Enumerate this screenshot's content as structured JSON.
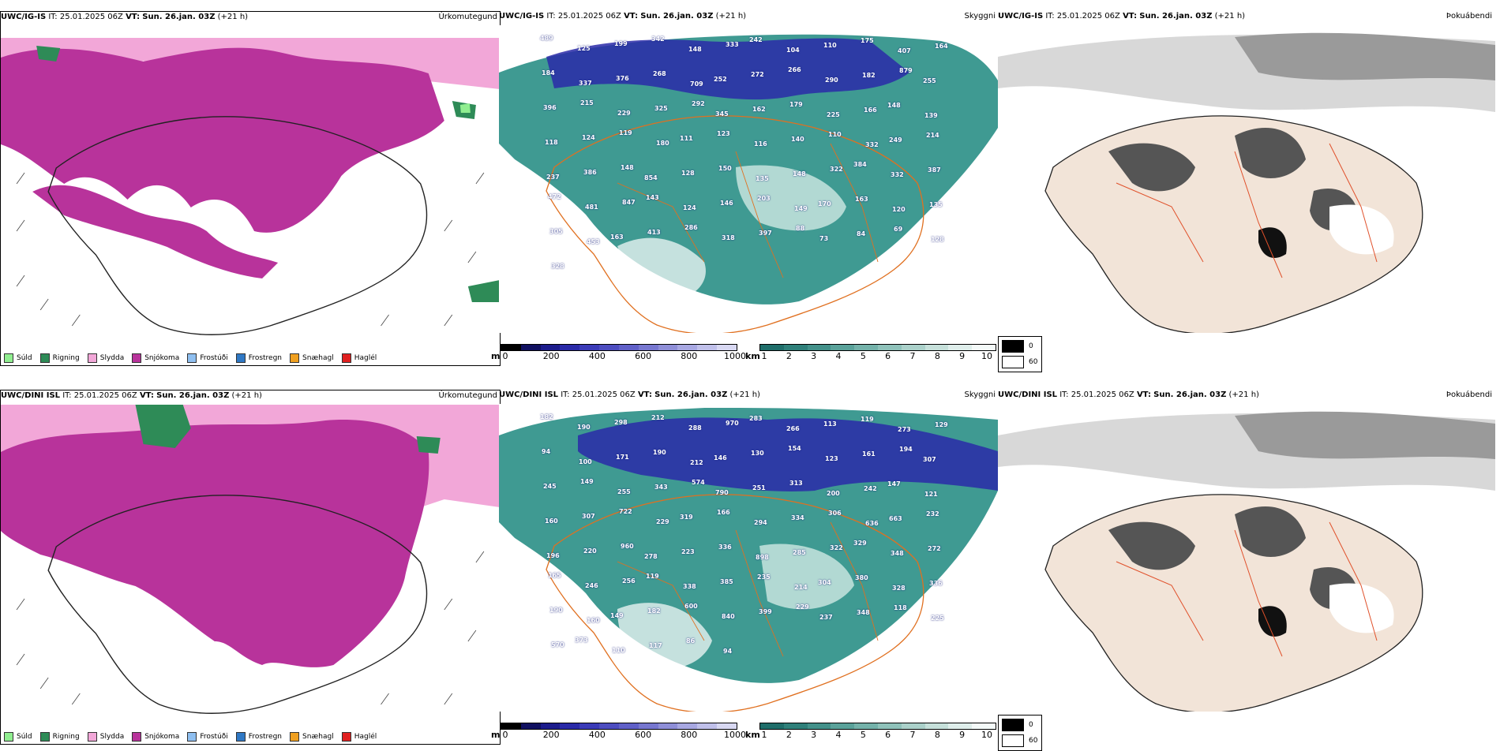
{
  "rows": [
    {
      "model": "UWC/IG-IS",
      "it_label": "IT:",
      "it_value": "25.01.2025 06Z",
      "vt_label": "VT:",
      "vt_value": "Sun. 26.jan. 03Z",
      "lead": "(+21 h)",
      "cloud_numbers": [
        "489",
        "125",
        "199",
        "342",
        "148",
        "333",
        "242",
        "104",
        "110",
        "175",
        "407",
        "164",
        "184",
        "337",
        "376",
        "268",
        "709",
        "252",
        "272",
        "266",
        "290",
        "182",
        "879",
        "255",
        "396",
        "215",
        "229",
        "325",
        "292",
        "345",
        "162",
        "179",
        "225",
        "166",
        "148",
        "139",
        "118",
        "124",
        "119",
        "180",
        "111",
        "123",
        "116",
        "140",
        "110",
        "332",
        "249",
        "214",
        "237",
        "386",
        "148",
        "854",
        "128",
        "150",
        "135",
        "148",
        "322",
        "384",
        "332",
        "387",
        "472",
        "481",
        "847",
        "143",
        "124",
        "146",
        "203",
        "149",
        "170",
        "163",
        "120",
        "135",
        "305",
        "453",
        "163",
        "413",
        "286",
        "318",
        "397",
        "88",
        "73",
        "84",
        "69",
        "128",
        "328"
      ]
    },
    {
      "model": "UWC/DINI ISL",
      "it_label": "IT:",
      "it_value": "25.01.2025 06Z",
      "vt_label": "VT:",
      "vt_value": "Sun. 26.jan. 03Z",
      "lead": "(+21 h)",
      "cloud_numbers": [
        "182",
        "190",
        "298",
        "212",
        "288",
        "970",
        "283",
        "266",
        "113",
        "119",
        "273",
        "129",
        "94",
        "100",
        "171",
        "190",
        "212",
        "146",
        "130",
        "154",
        "123",
        "161",
        "194",
        "307",
        "245",
        "149",
        "255",
        "343",
        "574",
        "790",
        "251",
        "313",
        "200",
        "242",
        "147",
        "121",
        "160",
        "307",
        "722",
        "229",
        "319",
        "166",
        "294",
        "334",
        "306",
        "636",
        "663",
        "232",
        "196",
        "220",
        "960",
        "278",
        "223",
        "336",
        "898",
        "285",
        "322",
        "329",
        "348",
        "272",
        "165",
        "246",
        "256",
        "119",
        "338",
        "385",
        "235",
        "214",
        "304",
        "380",
        "328",
        "336",
        "190",
        "160",
        "149",
        "182",
        "600",
        "840",
        "399",
        "229",
        "237",
        "348",
        "118",
        "225",
        "570",
        "373",
        "110",
        "117",
        "86",
        "94"
      ]
    }
  ],
  "titles": {
    "precip": "Úrkomutegund",
    "cloud": "Skyggni",
    "fog": "Þokuábendi"
  },
  "precip_legend": [
    {
      "label": "Súld",
      "color": "#90ee90"
    },
    {
      "label": "Rigning",
      "color": "#2e8b57"
    },
    {
      "label": "Slydda",
      "color": "#f2a7d8"
    },
    {
      "label": "Snjókoma",
      "color": "#b8339b"
    },
    {
      "label": "Frostúði",
      "color": "#8fbff0"
    },
    {
      "label": "Frostregn",
      "color": "#2f78c4"
    },
    {
      "label": "Snæhagl",
      "color": "#f0a020"
    },
    {
      "label": "Haglél",
      "color": "#e02020"
    }
  ],
  "cbar_m": {
    "unit": "m",
    "ticks": [
      "0",
      "200",
      "400",
      "600",
      "800",
      "1000"
    ],
    "colors": [
      "#000000",
      "#101060",
      "#1c1c8c",
      "#2a2aa8",
      "#3b3bb8",
      "#4d4dc0",
      "#6060c8",
      "#7777d0",
      "#8f8fd8",
      "#a8a8e2",
      "#c0c0ea",
      "#d8d8f2"
    ]
  },
  "cbar_km": {
    "unit": "km",
    "ticks": [
      "1",
      "2",
      "3",
      "4",
      "5",
      "6",
      "7",
      "8",
      "9",
      "10"
    ],
    "colors": [
      "#1f6e6a",
      "#2f807a",
      "#43918a",
      "#5aa29a",
      "#74b2aa",
      "#8fc2ba",
      "#abd1ca",
      "#c6e0da",
      "#dfeeeb",
      "#f4faf9"
    ]
  },
  "fog_key": {
    "black_label": "0",
    "white_label": "60"
  }
}
